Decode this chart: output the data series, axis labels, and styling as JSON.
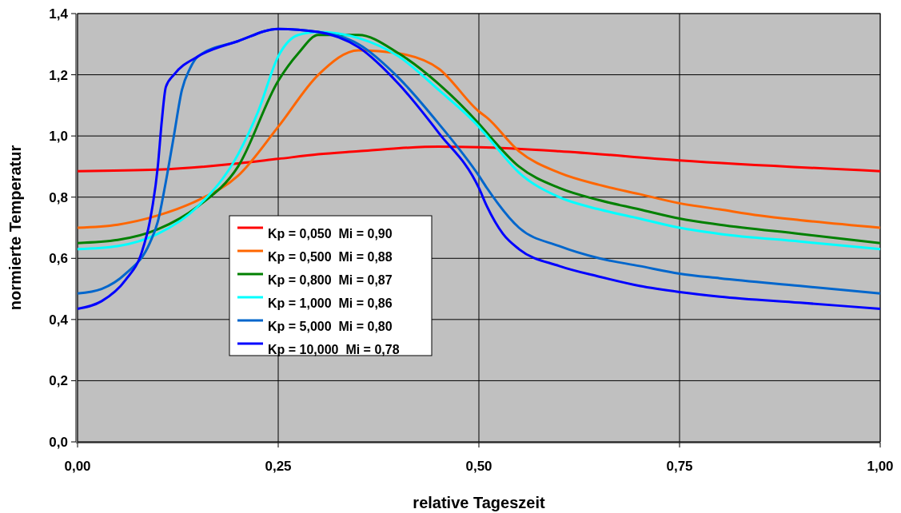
{
  "chart_data": {
    "type": "line",
    "xlabel": "relative Tageszeit",
    "ylabel": "normierte Temperatur",
    "xlim": [
      0,
      1
    ],
    "ylim": [
      0,
      1.4
    ],
    "xticks": [
      {
        "value": 0,
        "label": "0,00"
      },
      {
        "value": 0.25,
        "label": "0,25"
      },
      {
        "value": 0.5,
        "label": "0,50"
      },
      {
        "value": 0.75,
        "label": "0,75"
      },
      {
        "value": 1,
        "label": "1,00"
      }
    ],
    "yticks": [
      {
        "value": 0,
        "label": "0,0"
      },
      {
        "value": 0.2,
        "label": "0,2"
      },
      {
        "value": 0.4,
        "label": "0,4"
      },
      {
        "value": 0.6,
        "label": "0,6"
      },
      {
        "value": 0.8,
        "label": "0,8"
      },
      {
        "value": 1,
        "label": "1,0"
      },
      {
        "value": 1.2,
        "label": "1,2"
      },
      {
        "value": 1.4,
        "label": "1,4"
      }
    ],
    "grid": true,
    "legend": "center left",
    "line_style": "solid",
    "marker": "none",
    "series": [
      {
        "name": "Kp = 0,050  Mi = 0,90",
        "color": "#ff0000",
        "x": [
          0,
          0.1,
          0.2,
          0.25,
          0.3,
          0.35,
          0.4,
          0.45,
          0.5,
          0.6,
          0.75,
          1
        ],
        "values": [
          0.885,
          0.89,
          0.91,
          0.925,
          0.94,
          0.95,
          0.96,
          0.965,
          0.963,
          0.95,
          0.92,
          0.885
        ]
      },
      {
        "name": "Kp = 0,500  Mi = 0,88",
        "color": "#ff6600",
        "x": [
          0,
          0.05,
          0.1,
          0.15,
          0.2,
          0.25,
          0.3,
          0.35,
          0.4,
          0.45,
          0.5,
          0.51,
          0.55,
          0.6,
          0.65,
          0.7,
          0.75,
          0.8,
          0.85,
          0.9,
          1
        ],
        "values": [
          0.7,
          0.71,
          0.74,
          0.79,
          0.87,
          1.03,
          1.2,
          1.28,
          1.27,
          1.22,
          1.08,
          1.06,
          0.95,
          0.88,
          0.84,
          0.81,
          0.78,
          0.76,
          0.74,
          0.725,
          0.7
        ]
      },
      {
        "name": "Kp = 0,800  Mi = 0,87",
        "color": "#008000",
        "x": [
          0,
          0.05,
          0.1,
          0.15,
          0.2,
          0.25,
          0.275,
          0.3,
          0.35,
          0.4,
          0.45,
          0.5,
          0.51,
          0.55,
          0.6,
          0.65,
          0.7,
          0.75,
          0.8,
          0.9,
          1
        ],
        "values": [
          0.65,
          0.66,
          0.695,
          0.77,
          0.9,
          1.18,
          1.27,
          1.33,
          1.33,
          1.27,
          1.17,
          1.04,
          1.01,
          0.9,
          0.83,
          0.79,
          0.76,
          0.73,
          0.71,
          0.68,
          0.65
        ]
      },
      {
        "name": "Kp = 1,000  Mi = 0,86",
        "color": "#00ffff",
        "x": [
          0,
          0.05,
          0.1,
          0.15,
          0.2,
          0.225,
          0.25,
          0.275,
          0.3,
          0.35,
          0.4,
          0.45,
          0.5,
          0.51,
          0.55,
          0.6,
          0.65,
          0.7,
          0.75,
          0.8,
          0.9,
          1
        ],
        "values": [
          0.63,
          0.64,
          0.68,
          0.77,
          0.94,
          1.08,
          1.26,
          1.33,
          1.34,
          1.32,
          1.26,
          1.15,
          1.03,
          1,
          0.88,
          0.8,
          0.76,
          0.73,
          0.7,
          0.68,
          0.655,
          0.63
        ]
      },
      {
        "name": "Kp = 5,000  Mi = 0,80",
        "color": "#0066cc",
        "x": [
          0,
          0.03,
          0.06,
          0.09,
          0.1,
          0.11,
          0.12,
          0.13,
          0.14,
          0.15,
          0.2,
          0.25,
          0.3,
          0.35,
          0.4,
          0.45,
          0.5,
          0.51,
          0.55,
          0.6,
          0.65,
          0.7,
          0.75,
          0.8,
          0.9,
          1
        ],
        "values": [
          0.485,
          0.5,
          0.55,
          0.65,
          0.72,
          0.85,
          1,
          1.15,
          1.22,
          1.26,
          1.31,
          1.35,
          1.34,
          1.3,
          1.19,
          1.04,
          0.87,
          0.83,
          0.7,
          0.64,
          0.6,
          0.575,
          0.55,
          0.535,
          0.51,
          0.485
        ]
      },
      {
        "name": "Kp = 10,000  Mi = 0,78",
        "color": "#0000ff",
        "x": [
          0,
          0.03,
          0.06,
          0.08,
          0.09,
          0.1,
          0.105,
          0.11,
          0.12,
          0.15,
          0.2,
          0.25,
          0.3,
          0.35,
          0.4,
          0.45,
          0.5,
          0.51,
          0.53,
          0.55,
          0.6,
          0.65,
          0.7,
          0.75,
          0.8,
          0.9,
          1
        ],
        "values": [
          0.435,
          0.46,
          0.53,
          0.62,
          0.72,
          0.9,
          1.05,
          1.16,
          1.2,
          1.26,
          1.31,
          1.35,
          1.34,
          1.29,
          1.17,
          1.01,
          0.83,
          0.77,
          0.68,
          0.63,
          0.575,
          0.54,
          0.51,
          0.49,
          0.475,
          0.455,
          0.435
        ]
      }
    ]
  }
}
